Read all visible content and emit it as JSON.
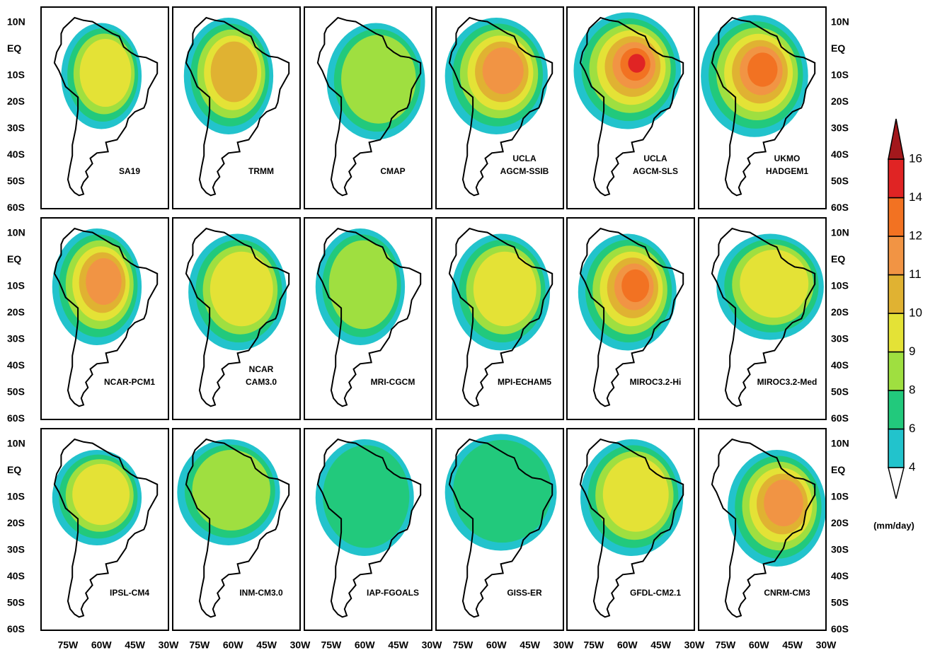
{
  "panels": [
    {
      "label": [
        "SA19"
      ]
    },
    {
      "label": [
        "TRMM"
      ]
    },
    {
      "label": [
        "CMAP"
      ]
    },
    {
      "label": [
        "UCLA",
        "AGCM-SSIB"
      ]
    },
    {
      "label": [
        "UCLA",
        "AGCM-SLS"
      ]
    },
    {
      "label": [
        "UKMO",
        "HADGEM1"
      ]
    },
    {
      "label": [
        "NCAR-PCM1"
      ]
    },
    {
      "label": [
        "NCAR",
        "CAM3.0"
      ]
    },
    {
      "label": [
        "MRI-CGCM"
      ]
    },
    {
      "label": [
        "MPI-ECHAM5"
      ]
    },
    {
      "label": [
        "MIROC3.2-Hi"
      ]
    },
    {
      "label": [
        "MIROC3.2-Med"
      ]
    },
    {
      "label": [
        "IPSL-CM4"
      ]
    },
    {
      "label": [
        "INM-CM3.0"
      ]
    },
    {
      "label": [
        "IAP-FGOALS"
      ]
    },
    {
      "label": [
        "GISS-ER"
      ]
    },
    {
      "label": [
        "GFDL-CM2.1"
      ]
    },
    {
      "label": [
        "CNRM-CM3"
      ]
    }
  ],
  "lat_labels": [
    "10N",
    "EQ",
    "10S",
    "20S",
    "30S",
    "40S",
    "50S",
    "60S"
  ],
  "lon_labels": [
    "75W",
    "60W",
    "45W",
    "30W"
  ],
  "colorbar": {
    "levels": [
      4,
      6,
      8,
      9,
      10,
      11,
      12,
      14,
      16
    ],
    "colors": [
      "#ffffff",
      "#22c3cc",
      "#22c97c",
      "#9fdf40",
      "#e4e236",
      "#e0b232",
      "#f19444",
      "#f27222",
      "#e02424",
      "#a3181c"
    ],
    "unit": "(mm/day)"
  }
}
